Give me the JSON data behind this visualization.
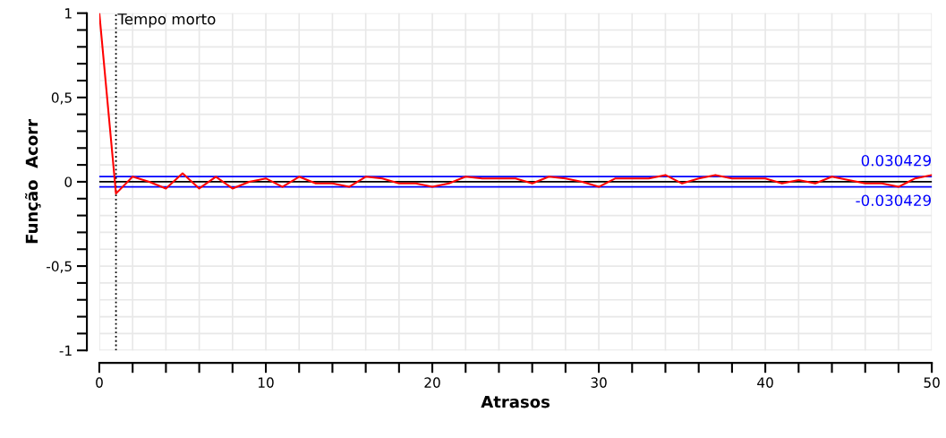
{
  "chart_data": {
    "type": "line",
    "xlabel": "Atrasos",
    "ylabel": "Função  Acorr",
    "x": [
      0,
      1,
      2,
      3,
      4,
      5,
      6,
      7,
      8,
      9,
      10,
      11,
      12,
      13,
      14,
      15,
      16,
      17,
      18,
      19,
      20,
      21,
      22,
      23,
      24,
      25,
      26,
      27,
      28,
      29,
      30,
      31,
      32,
      33,
      34,
      35,
      36,
      37,
      38,
      39,
      40,
      41,
      42,
      43,
      44,
      45,
      46,
      47,
      48,
      49,
      50
    ],
    "series": [
      {
        "color": "#ff0000",
        "values": [
          1.0,
          -0.07,
          0.03,
          0.0,
          -0.04,
          0.05,
          -0.04,
          0.03,
          -0.04,
          0.0,
          0.02,
          -0.03,
          0.03,
          -0.01,
          -0.01,
          -0.03,
          0.03,
          0.02,
          -0.01,
          -0.01,
          -0.03,
          -0.01,
          0.03,
          0.02,
          0.02,
          0.02,
          -0.01,
          0.03,
          0.02,
          0.0,
          -0.03,
          0.02,
          0.02,
          0.02,
          0.04,
          -0.01,
          0.02,
          0.04,
          0.02,
          0.02,
          0.02,
          -0.01,
          0.01,
          -0.01,
          0.03,
          0.01,
          -0.01,
          -0.01,
          -0.03,
          0.02,
          0.04
        ]
      }
    ],
    "xlim": [
      0,
      50
    ],
    "xticks": [
      0,
      {
        "value": 2,
        "label": null
      },
      {
        "value": 4,
        "label": null
      },
      {
        "value": 6,
        "label": null
      },
      {
        "value": 8,
        "label": null
      },
      10,
      {
        "value": 12,
        "label": null
      },
      {
        "value": 14,
        "label": null
      },
      {
        "value": 16,
        "label": null
      },
      {
        "value": 18,
        "label": null
      },
      20,
      {
        "value": 22,
        "label": null
      },
      {
        "value": 24,
        "label": null
      },
      {
        "value": 26,
        "label": null
      },
      {
        "value": 28,
        "label": null
      },
      30,
      {
        "value": 32,
        "label": null
      },
      {
        "value": 34,
        "label": null
      },
      {
        "value": 36,
        "label": null
      },
      {
        "value": 38,
        "label": null
      },
      40,
      {
        "value": 42,
        "label": null
      },
      {
        "value": 44,
        "label": null
      },
      {
        "value": 46,
        "label": null
      },
      {
        "value": 48,
        "label": null
      },
      50
    ],
    "ylim": [
      -1,
      1
    ],
    "yticks": [
      {
        "value": -1,
        "label": "-1"
      },
      {
        "value": -0.9,
        "label": null
      },
      {
        "value": -0.8,
        "label": null
      },
      {
        "value": -0.7,
        "label": null
      },
      {
        "value": -0.6,
        "label": null
      },
      {
        "value": -0.5,
        "label": "-0,5"
      },
      {
        "value": -0.4,
        "label": null
      },
      {
        "value": -0.3,
        "label": null
      },
      {
        "value": -0.2,
        "label": null
      },
      {
        "value": -0.1,
        "label": null
      },
      0,
      {
        "value": 0.1,
        "label": null
      },
      {
        "value": 0.2,
        "label": null
      },
      {
        "value": 0.3,
        "label": null
      },
      {
        "value": 0.4,
        "label": null
      },
      {
        "value": 0.5,
        "label": "0,5"
      },
      {
        "value": 0.6,
        "label": null
      },
      {
        "value": 0.7,
        "label": null
      },
      {
        "value": 0.8,
        "label": null
      },
      {
        "value": 0.9,
        "label": null
      },
      1
    ],
    "ref_lines": [
      {
        "axis": "y",
        "value": 0.030429,
        "label": "0.030429",
        "color": "#0000ff",
        "line_style": "solid"
      },
      {
        "axis": "y",
        "value": -0.030429,
        "label": "-0.030429",
        "color": "#0000ff",
        "line_style": "solid"
      },
      {
        "axis": "y",
        "value": 0,
        "color": "#000000",
        "line_style": "solid"
      },
      {
        "axis": "x",
        "value": 1,
        "label": "Tempo morto",
        "color": "#000000",
        "line_style": "dotted"
      }
    ],
    "grid": true,
    "marker": "none",
    "line_style": "solid",
    "legend": false
  }
}
